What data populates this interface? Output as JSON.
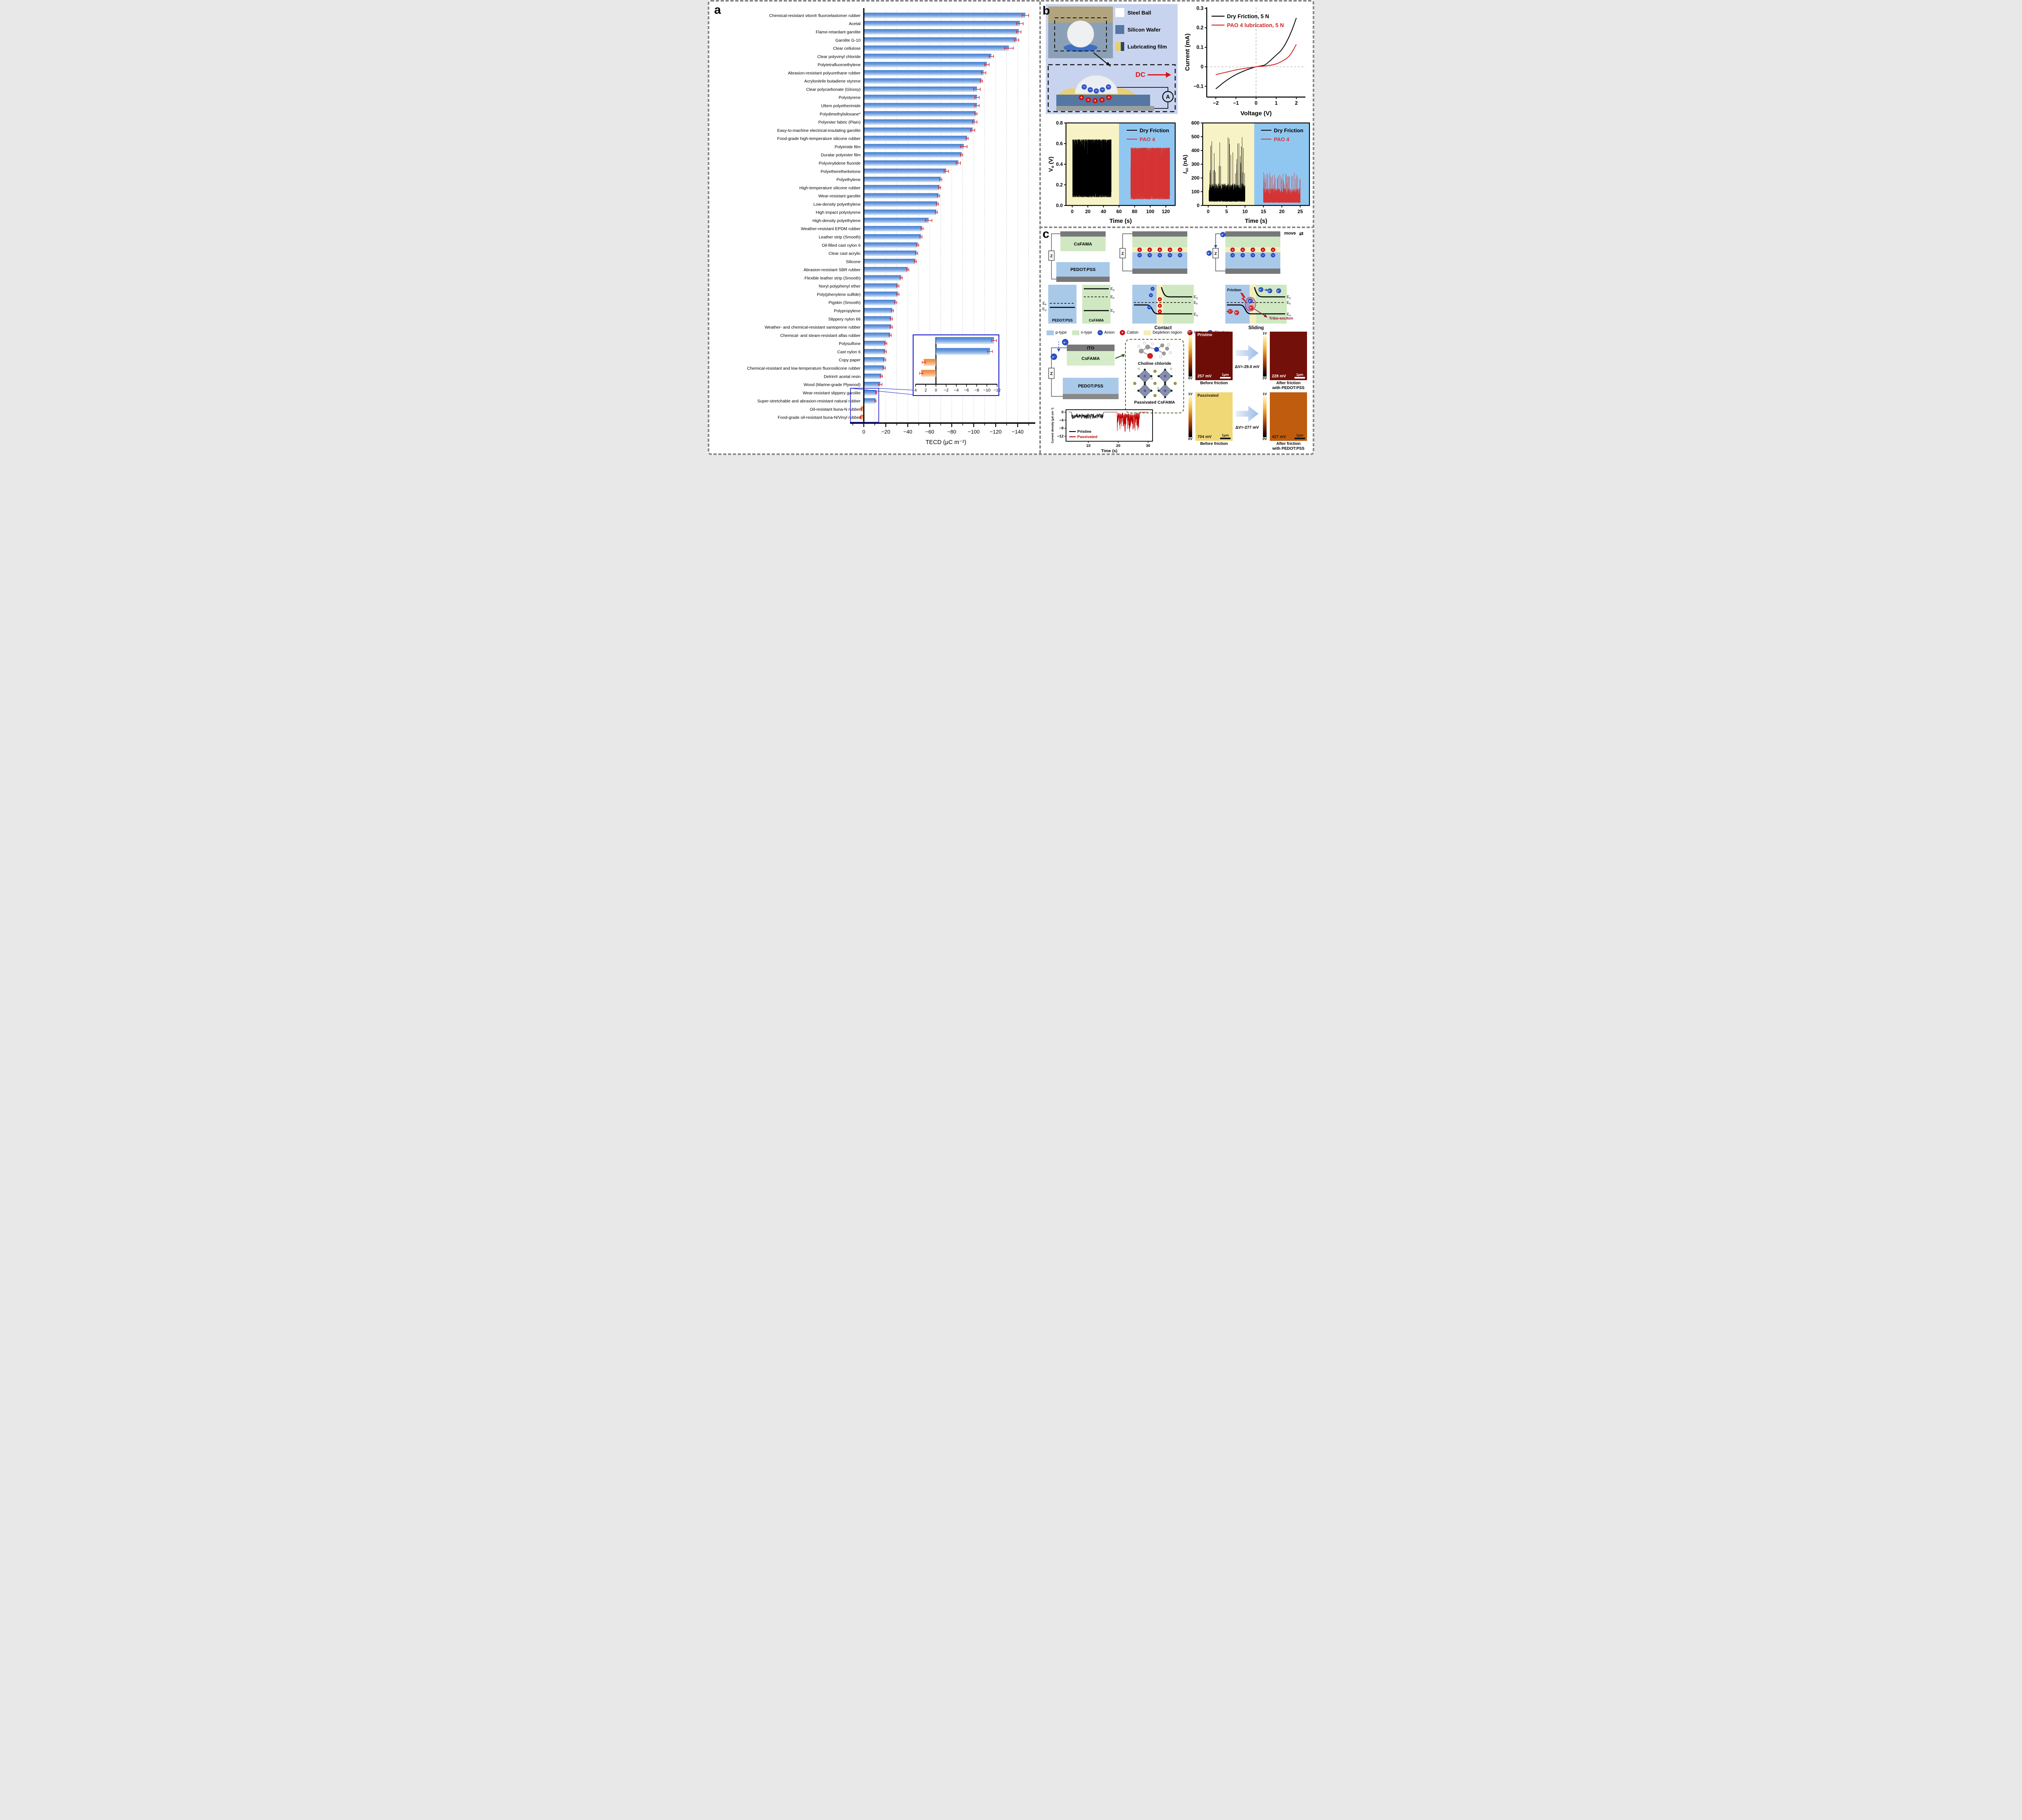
{
  "figure": {
    "a_label": "a",
    "b_label": "b",
    "c_label": "c"
  },
  "colors": {
    "bar_blue_top": "#3f7cd4",
    "bar_blue_bottom": "#d9e7f7",
    "bar_orange_top": "#ef8330",
    "bar_orange_bottom": "#fbdcbd",
    "error_red": "#dd1f1f",
    "inset_border": "#1a1acc",
    "grid_major": "#8fd8cc",
    "grid_minor": "#9a9a9a",
    "panel_b_bg": "#c8d4ef",
    "region_yellow": "#f8f3c6",
    "region_blue": "#90c7f0"
  },
  "chart_data": [
    {
      "id": "tecd",
      "type": "bar",
      "orientation": "horizontal",
      "xlabel": "TECD (μC m⁻²)",
      "xticks": [
        0,
        -20,
        -40,
        -60,
        -80,
        -100,
        -120,
        -140
      ],
      "xlim": [
        12,
        -154
      ],
      "categories": [
        "Chemical-resistant viton® fluoroelastomer rubber",
        "Acetal",
        "Flame-retardant garolite",
        "Garolite G-10",
        "Clear cellulose",
        "Clear polyvinyl chloride",
        "Polytetrafluoroethylene",
        "Abrasion-resistant polyurethane rubber",
        "Acrylonitrile butadiene styrene",
        "Clear polycarbonate (Glossy)",
        "Polystyrene",
        "Ultem polyetherimide",
        "Polydimethylsiloxane*",
        "Polyester fabric (Plain)",
        "Easy-to-machine electrical-insulating garolite",
        "Food-grade high-temperature silicone rubber",
        "Polyimide film",
        "Duralar polyester film",
        "Polyvinylidene fluoride",
        "Polyetheretherketone",
        "Polyethylene",
        "High-temperature silicone rubber",
        "Wear-resistant garolite",
        "Low-density polyethylene",
        "High impact polystyrene",
        "High-density polyethylene",
        "Weather-resistant EPDM rubber",
        "Leather strip (Smooth)",
        "Oil-filled cast nylon 6",
        "Clear cast acrylic",
        "Silicone",
        "Abrasion-resistant SBR rubber",
        "Flexible leather strip (Smooth)",
        "Noryl polyphenyl ether",
        "Poly(phenylene sulfide)",
        "Pigskin (Smooth)",
        "Polypropylene",
        "Slippery nylon 66",
        "Weather- and chemical-resistant santoprene rubber",
        "Chemical- and steam-resistant aflas rubber",
        "Polysulfone",
        "Cast nylon 6",
        "Copy paper",
        "Chemical-resistant and low-temperature fluorosilicone rubber",
        "Delrin® acetal resin",
        "Wood (Marine-grade Plywood)",
        "Wear-resistant slippery garolite",
        "Super-stretchable and abrasion-resistant natural rubber",
        "Oil-resistant buna-N rubber",
        "Food-grade oil-resistant buna-N/Vinyl rubber"
      ],
      "values": [
        -147,
        -142,
        -141,
        -139,
        -132,
        -116,
        -112,
        -109,
        -107,
        -103,
        -103,
        -103,
        -102,
        -101,
        -99,
        -94,
        -91,
        -89,
        -86,
        -75,
        -70,
        -69,
        -68,
        -67,
        -66,
        -59,
        -53,
        -52,
        -49,
        -48,
        -47,
        -40,
        -34,
        -31,
        -31,
        -29,
        -26,
        -25,
        -25,
        -24,
        -20,
        -19.5,
        -19,
        -18.5,
        -16,
        -15,
        -11.4,
        -10.6,
        2.4,
        2.9
      ],
      "errors": [
        3,
        3,
        2,
        2,
        4,
        2,
        2,
        2,
        1,
        3,
        2,
        2,
        1,
        2,
        2,
        1,
        3,
        1,
        2,
        2,
        1,
        1,
        1,
        1,
        1,
        3,
        1,
        1,
        1,
        1,
        1,
        1,
        1,
        1,
        1,
        1,
        1,
        1,
        1,
        1,
        1,
        1,
        1,
        1,
        1,
        1.5,
        0.5,
        0.5,
        0.3,
        0.3
      ]
    },
    {
      "id": "tecd-inset",
      "type": "bar",
      "orientation": "horizontal",
      "xticks": [
        4,
        2,
        0,
        -2,
        -4,
        -6,
        -8,
        -10,
        -12
      ],
      "categories": [
        "Wear-resistant slippery garolite",
        "Super-stretchable and abrasion-resistant natural rubber",
        "Oil-resistant buna-N rubber",
        "Food-grade oil-resistant buna-N/Vinyl rubber"
      ],
      "values": [
        -11.4,
        -10.6,
        2.4,
        2.9
      ],
      "errors": [
        0.5,
        0.5,
        0.3,
        0.3
      ]
    },
    {
      "id": "iv",
      "type": "line",
      "xlabel": "Voltage (V)",
      "ylabel": {
        "pre": "Current (mA)"
      },
      "xticks": [
        -2,
        -1,
        0,
        1,
        2
      ],
      "yticks": [
        -0.1,
        0,
        0.1,
        0.2,
        0.3
      ],
      "xlim": [
        -2.45,
        2.45
      ],
      "ylim": [
        -0.155,
        0.305
      ],
      "series": [
        {
          "name": "Dry Friction, 5 N",
          "color": "#000000",
          "x": [
            -2,
            -1.5,
            -1,
            -0.5,
            -0.25,
            0,
            0.25,
            0.5,
            1,
            1.25,
            1.5,
            1.75,
            2
          ],
          "y": [
            -0.113,
            -0.072,
            -0.04,
            -0.017,
            -0.008,
            0,
            0.005,
            0.014,
            0.06,
            0.085,
            0.125,
            0.18,
            0.25
          ]
        },
        {
          "name": "PAO 4 lubrication, 5 N",
          "color": "#d42424",
          "x": [
            -2,
            -1.5,
            -1,
            -0.5,
            0,
            0.5,
            1,
            1.5,
            1.75,
            2
          ],
          "y": [
            -0.04,
            -0.028,
            -0.016,
            -0.007,
            0,
            0.005,
            0.015,
            0.042,
            0.07,
            0.115
          ]
        }
      ]
    },
    {
      "id": "vo",
      "type": "noise",
      "xlabel": "Time (s)",
      "ylabel": {
        "pre": "V",
        "sub": "o",
        "post": " (V)"
      },
      "xticks": [
        0,
        20,
        40,
        60,
        80,
        100,
        120
      ],
      "yticks": [
        "0.0",
        "0.2",
        "0.4",
        "0.6",
        "0.8"
      ],
      "xlim": [
        -8,
        132
      ],
      "ylim": [
        0,
        0.8
      ],
      "regions": [
        {
          "to": 60,
          "color": "#f8f3c6"
        },
        {
          "from": 60,
          "color": "#90c7f0"
        }
      ],
      "series": [
        {
          "name": "Dry Friction",
          "color": "#000000",
          "t0": 0.5,
          "t1": 50,
          "lo": 0.08,
          "hi": 0.64,
          "n": 560
        },
        {
          "name": "PAO 4",
          "color": "#d53535",
          "t0": 75,
          "t1": 125,
          "lo": 0.06,
          "hi": 0.56,
          "n": 560
        }
      ]
    },
    {
      "id": "isc",
      "type": "spike",
      "xlabel": "Time (s)",
      "ylabel": {
        "pre": "I",
        "sub": "sc",
        "post": " (nA)",
        "italic": true
      },
      "xticks": [
        0,
        5,
        10,
        15,
        20,
        25
      ],
      "yticks": [
        0,
        100,
        200,
        300,
        400,
        500,
        600
      ],
      "xlim": [
        -1.5,
        27.5
      ],
      "ylim": [
        0,
        600
      ],
      "regions": [
        {
          "to": 12.5,
          "color": "#f8f3c6"
        },
        {
          "from": 12.5,
          "color": "#90c7f0"
        }
      ],
      "series": [
        {
          "name": "Dry Friction",
          "color": "#000000",
          "t0": 0.2,
          "t1": 10,
          "base_lo": 35,
          "base_hi": 160,
          "spike_hi": 520,
          "spike_p": 0.05,
          "n": 640
        },
        {
          "name": "PAO 4",
          "color": "#d53535",
          "t0": 15,
          "t1": 25,
          "base_lo": 25,
          "base_hi": 125,
          "spike_hi": 245,
          "spike_p": 0.06,
          "n": 640
        }
      ]
    },
    {
      "id": "jd",
      "type": "jd",
      "xlabel": "Time (s)",
      "ylabel": {
        "pre": "Current density (μA cm⁻²)"
      },
      "xticks": [
        10,
        20,
        30
      ],
      "yticks": [
        0,
        -4,
        -8,
        -12
      ],
      "xlim": [
        2.5,
        31.5
      ],
      "ylim": [
        -14.5,
        1.2
      ],
      "series": [
        {
          "name": "Pristine",
          "color": "#000000",
          "t0": 4.4,
          "t1": 15,
          "lo": -3.4,
          "hi": -0.7
        },
        {
          "name": "Passivated",
          "color": "#c00000",
          "t0": 19.6,
          "t1": 27.2,
          "lo": -11,
          "hi": -0.4
        }
      ]
    }
  ],
  "panel_b": {
    "legend": [
      {
        "label": "Steel Ball"
      },
      {
        "label": "Silicon Wafer"
      },
      {
        "label": "Lubricating film"
      }
    ],
    "dc_label": "DC",
    "ammeter_label": "A"
  },
  "panel_c": {
    "device1": {
      "top": "CsFAMA",
      "bottom": "PEDOT:PSS",
      "z": "Z"
    },
    "move_label": "move",
    "move_glyph": "⇄",
    "electron": "e⁻",
    "hole": "h⁺",
    "anion_glyph": "−",
    "cation_glyph": "+",
    "band": {
      "ec": "E",
      "ec_sub": "C",
      "ef": "E",
      "ef_sub": "F",
      "ev": "E",
      "ev_sub": "V",
      "pedot": "PEDOT:PSS",
      "csfama": "CsFAMA",
      "contact": "Contact",
      "sliding": "Sliding",
      "friction": "Friction",
      "tribo": "Tribo-exciton"
    },
    "legend": [
      {
        "label": "p-type"
      },
      {
        "label": "n-type"
      },
      {
        "label": "Anion",
        "symbol": "−"
      },
      {
        "label": "Cation",
        "symbol": "+"
      },
      {
        "label": "Depletion region"
      },
      {
        "label": "Hole",
        "symbol": "h⁺"
      },
      {
        "label": "Electron",
        "symbol": "e⁻"
      }
    ],
    "device2": {
      "ito": "ITO",
      "csfama": "CsFAMA",
      "pedot": "PEDOT:PSS",
      "z": "Z"
    },
    "choline": {
      "molecule_label": "Choline chloride",
      "crystal_label": "Passivated CsFAMA"
    },
    "kpfm": [
      {
        "tag": "Pristine",
        "before_value": "257 mV",
        "after_value": "228 mV",
        "dv": "ΔV=-29.0 mV",
        "scalebar": "1μm",
        "cb_top": "1V",
        "cb_bottom": "0V",
        "before_caption": "Before friction",
        "after_caption": "After friction",
        "after_caption2": "with PEDOT:PSS",
        "before_color": "#6e0d07",
        "after_color": "#73100a",
        "label_color": "#ffffff",
        "bar_color": "#ffffff"
      },
      {
        "tag": "Passivated",
        "before_value": "704 mV",
        "after_value": "427 mV",
        "dv": "ΔV=-277 mV",
        "scalebar": "1μm",
        "cb_top": "1V",
        "cb_bottom": "0V",
        "before_caption": "Before friction",
        "after_caption": "After friction",
        "after_caption2": "with PEDOT:PSS",
        "before_color": "#f1d876",
        "after_color": "#bf5c0e",
        "label_color": "#1a1a1a",
        "bar_color": "#1a1a1a"
      }
    ]
  }
}
